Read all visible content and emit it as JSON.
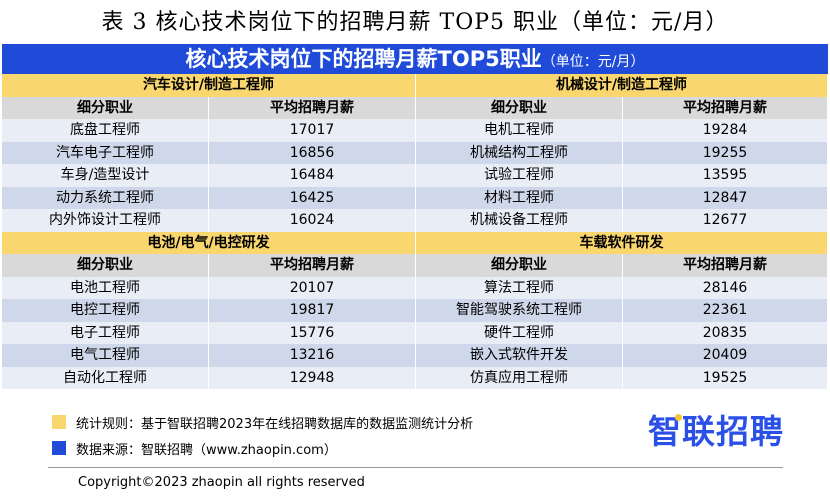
{
  "caption": "表 3 核心技术岗位下的招聘月薪 TOP5 职业（单位：元/月）",
  "banner": {
    "title": "核心技术岗位下的招聘月薪TOP5职业",
    "unit": "（单位：元/月）"
  },
  "colors": {
    "banner": "#1f4bd8",
    "section": "#f9d76e",
    "header": "#d9d9d9",
    "row_light": "#e9edf6",
    "row_dark": "#cfd8ea",
    "legend_yellow": "#f9d76e",
    "legend_blue": "#1f4bd8",
    "logo": "#2b50e8"
  },
  "sections": [
    {
      "left": {
        "title": "汽车设计/制造工程师",
        "col1": "细分职业",
        "col2": "平均招聘月薪",
        "rows": [
          [
            "底盘工程师",
            "17017"
          ],
          [
            "汽车电子工程师",
            "16856"
          ],
          [
            "车身/造型设计",
            "16484"
          ],
          [
            "动力系统工程师",
            "16425"
          ],
          [
            "内外饰设计工程师",
            "16024"
          ]
        ]
      },
      "right": {
        "title": "机械设计/制造工程师",
        "col1": "细分职业",
        "col2": "平均招聘月薪",
        "rows": [
          [
            "电机工程师",
            "19284"
          ],
          [
            "机械结构工程师",
            "19255"
          ],
          [
            "试验工程师",
            "13595"
          ],
          [
            "材料工程师",
            "12847"
          ],
          [
            "机械设备工程师",
            "12677"
          ]
        ]
      }
    },
    {
      "left": {
        "title": "电池/电气/电控研发",
        "col1": "细分职业",
        "col2": "平均招聘月薪",
        "rows": [
          [
            "电池工程师",
            "20107"
          ],
          [
            "电控工程师",
            "19817"
          ],
          [
            "电子工程师",
            "15776"
          ],
          [
            "电气工程师",
            "13216"
          ],
          [
            "自动化工程师",
            "12948"
          ]
        ]
      },
      "right": {
        "title": "车载软件研发",
        "col1": "细分职业",
        "col2": "平均招聘月薪",
        "rows": [
          [
            "算法工程师",
            "28146"
          ],
          [
            "智能驾驶系统工程师",
            "22361"
          ],
          [
            "硬件工程师",
            "20835"
          ],
          [
            "嵌入式软件开发",
            "20409"
          ],
          [
            "仿真应用工程师",
            "19525"
          ]
        ]
      }
    }
  ],
  "legend": [
    {
      "text": "统计规则：基于智联招聘2023年在线招聘数据库的数据监测统计分析",
      "color": "#f9d76e"
    },
    {
      "text": "数据来源：智联招聘（www.zhaopin.com）",
      "color": "#1f4bd8"
    }
  ],
  "logo": "智联招聘",
  "copyright": "Copyright©2023 zhaopin all rights reserved"
}
